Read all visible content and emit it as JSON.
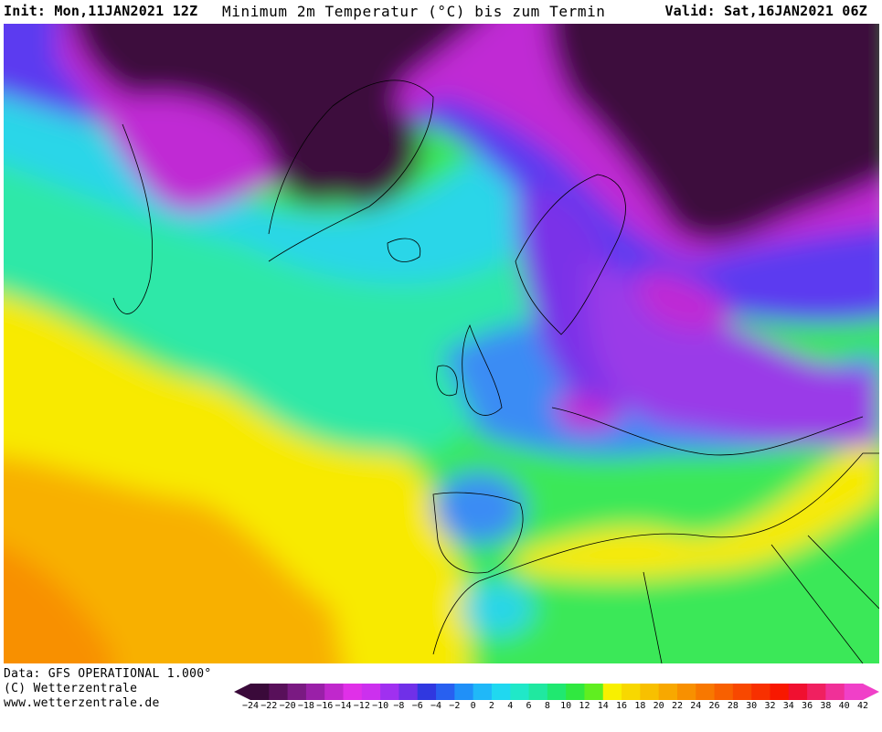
{
  "header": {
    "init": "Init: Mon,11JAN2021 12Z",
    "title": "Minimum 2m Temperatur (°C) bis zum Termin",
    "valid": "Valid: Sat,16JAN2021 06Z"
  },
  "footer": {
    "source": "Data: GFS OPERATIONAL 1.000°",
    "copyright": "(C) Wetterzentrale",
    "url": "www.wetterzentrale.de"
  },
  "legend": {
    "labels": [
      "-24",
      "-22",
      "-20",
      "-18",
      "-16",
      "-14",
      "-12",
      "-10",
      "-8",
      "-6",
      "-4",
      "-2",
      "0",
      "2",
      "4",
      "6",
      "8",
      "10",
      "12",
      "14",
      "16",
      "18",
      "20",
      "22",
      "24",
      "26",
      "28",
      "30",
      "32",
      "34",
      "36",
      "38",
      "40",
      "42"
    ],
    "colors": [
      "#3a0a3a",
      "#58105a",
      "#7a1a82",
      "#9a20a8",
      "#c028cc",
      "#e030e8",
      "#cc30ee",
      "#a030f0",
      "#7030e8",
      "#3038e0",
      "#2860f0",
      "#2090f8",
      "#20b8f8",
      "#20d8f0",
      "#20e8c8",
      "#20e8a0",
      "#20e870",
      "#30e840",
      "#60ee20",
      "#f8f000",
      "#f8d800",
      "#f8c000",
      "#f8a800",
      "#f89000",
      "#f87800",
      "#f86000",
      "#f84800",
      "#f83000",
      "#f81800",
      "#f01030",
      "#f02060",
      "#f03098",
      "#f040c8"
    ]
  },
  "colors": {
    "deep_cold": "#3d0a3d",
    "very_cold": "#c02ad4",
    "cold": "#5b3af0",
    "cool": "#3a8cf4",
    "cool_aqua": "#2ad6e8",
    "mild": "#2ee8a8",
    "mild_green": "#3ae858",
    "warm": "#f8ea00",
    "hot": "#f8b000",
    "hotter": "#f89000"
  }
}
